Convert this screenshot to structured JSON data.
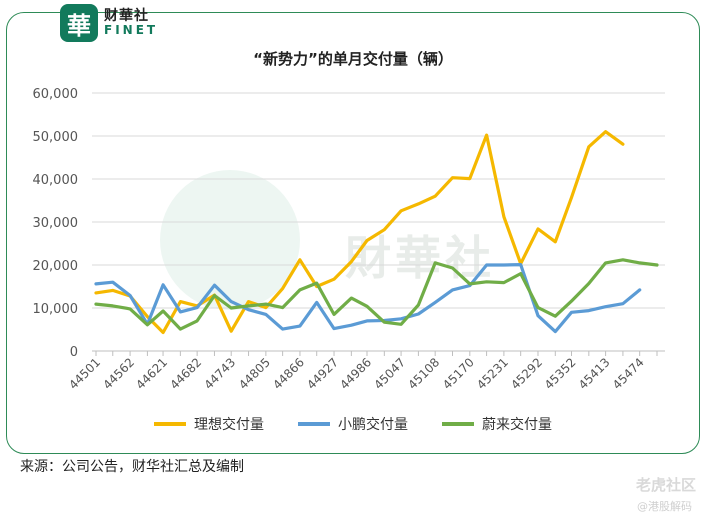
{
  "brand": {
    "name_cn": "财華社",
    "name_en": "FINET",
    "badge_char": "華"
  },
  "watermark_text": "財華社",
  "source_note": "来源：公司公告，财华社汇总及编制",
  "corner_brand": "老虎社区",
  "corner_sub": "@港股解码",
  "chart_data": {
    "type": "line",
    "title": "“新势力”的单月交付量（辆）",
    "xlabel": "",
    "ylabel": "",
    "ylim": [
      0,
      60000
    ],
    "yticks": [
      0,
      10000,
      20000,
      30000,
      40000,
      50000,
      60000
    ],
    "ytick_labels": [
      "0",
      "10,000",
      "20,000",
      "30,000",
      "40,000",
      "50,000",
      "60,000"
    ],
    "grid": true,
    "legend_position": "bottom",
    "x": [
      44501,
      44531,
      44562,
      44593,
      44621,
      44652,
      44682,
      44713,
      44743,
      44774,
      44805,
      44835,
      44866,
      44896,
      44927,
      44958,
      44986,
      45017,
      45047,
      45078,
      45108,
      45139,
      45170,
      45200,
      45231,
      45261,
      45292,
      45323,
      45352,
      45383,
      45413,
      45444,
      45474,
      45505
    ],
    "xtick_labels": [
      "44501",
      "44562",
      "44621",
      "44682",
      "44743",
      "44805",
      "44866",
      "44927",
      "44986",
      "45047",
      "45108",
      "45170",
      "45231",
      "45292",
      "45352",
      "45413",
      "45474"
    ],
    "series": [
      {
        "name": "理想交付量",
        "color": "#f5b800",
        "values": [
          13500,
          14100,
          12800,
          8000,
          4300,
          11500,
          10500,
          13000,
          4600,
          11500,
          10100,
          14500,
          21200,
          15000,
          16700,
          20800,
          25700,
          28200,
          32600,
          34200,
          36000,
          40300,
          40100,
          50200,
          31200,
          20300,
          28400,
          25400,
          35700,
          47500,
          51000,
          48100,
          null,
          null
        ]
      },
      {
        "name": "小鹏交付量",
        "color": "#5b9bd5",
        "values": [
          15600,
          16000,
          12900,
          6200,
          15400,
          9100,
          10100,
          15300,
          11500,
          9600,
          8500,
          5100,
          5800,
          11300,
          5200,
          6000,
          7000,
          7100,
          7500,
          8600,
          11300,
          14200,
          15200,
          20000,
          20000,
          20100,
          8200,
          4500,
          9000,
          9400,
          10300,
          11000,
          14200,
          null
        ]
      },
      {
        "name": "蔚来交付量",
        "color": "#70ad47",
        "values": [
          10900,
          10500,
          9800,
          6100,
          9300,
          5100,
          7000,
          12900,
          10000,
          10500,
          10900,
          10100,
          14200,
          15800,
          8500,
          12300,
          10400,
          6700,
          6200,
          10700,
          20500,
          19300,
          15600,
          16100,
          15900,
          18000,
          10100,
          8100,
          11600,
          15700,
          20500,
          21200,
          20500,
          20000
        ]
      }
    ]
  }
}
